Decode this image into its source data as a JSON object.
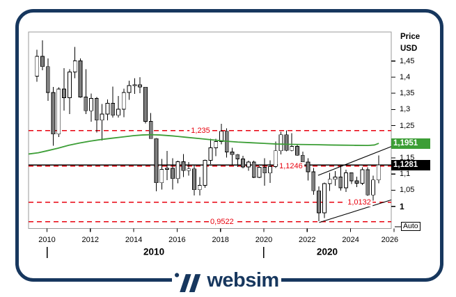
{
  "brand": "websim",
  "chart_data": {
    "type": "candlestick",
    "title": "",
    "period": "quarterly",
    "colors": {
      "frame": "#17375e",
      "up_candle": "#ffffff",
      "down_candle": "#808080",
      "wick": "#000000",
      "level_red": "#e8000d",
      "ma_green": "#3c9e36",
      "current_price_bg": "#000000",
      "plot_border": "#9a9a9a"
    },
    "y_axis": {
      "title1": "Price",
      "title2": "USD",
      "range": [
        0.9315,
        1.5398
      ],
      "ticks": [
        {
          "value": 1.45,
          "label": "1,45",
          "bold": false
        },
        {
          "value": 1.4,
          "label": "1,4",
          "bold": false
        },
        {
          "value": 1.35,
          "label": "1,35",
          "bold": false
        },
        {
          "value": 1.3,
          "label": "1,3",
          "bold": false
        },
        {
          "value": 1.25,
          "label": "1,25",
          "bold": false
        },
        {
          "value": 1.15,
          "label": "1,15",
          "bold": false
        },
        {
          "value": 1.1,
          "label": "1,1",
          "bold": false
        },
        {
          "value": 1.05,
          "label": "1,05",
          "bold": false
        },
        {
          "value": 1.0,
          "label": "1",
          "bold": true
        }
      ]
    },
    "x_axis": {
      "range": [
        2009.149,
        2025.875
      ],
      "ticks": [
        {
          "t": 2010,
          "label": "2010"
        },
        {
          "t": 2012,
          "label": "2012"
        },
        {
          "t": 2014,
          "label": "2014"
        },
        {
          "t": 2016,
          "label": "2016"
        },
        {
          "t": 2018,
          "label": "2018"
        },
        {
          "t": 2020,
          "label": "2020"
        },
        {
          "t": 2022,
          "label": "2022"
        },
        {
          "t": 2024,
          "label": "2024"
        },
        {
          "t": 2026,
          "label": "2026"
        }
      ],
      "decade_markers": [
        {
          "t": 2010.0
        },
        {
          "t": 2020.0
        }
      ],
      "decade_labels": [
        {
          "label": "2010",
          "t": 2014.93
        },
        {
          "label": "2020",
          "t": 2022.92
        }
      ]
    },
    "levels": [
      {
        "value": 1.235,
        "label": "1,235",
        "label_t": 2017.08
      },
      {
        "value": 1.1246,
        "label": "1,1246",
        "label_t": 2021.25
      },
      {
        "value": 1.0132,
        "label": "1,0132",
        "label_t": 2024.4
      },
      {
        "value": 0.9522,
        "label": "0,9522",
        "label_t": 2018.07
      }
    ],
    "current_price": {
      "value": 1.1281,
      "label": "1,1281"
    },
    "ma": {
      "last_value": 1.1951,
      "last_label": "1,1951",
      "points": [
        [
          2009.149,
          1.162
        ],
        [
          2009.6,
          1.166
        ],
        [
          2010.0,
          1.172
        ],
        [
          2010.5,
          1.18
        ],
        [
          2011.0,
          1.189
        ],
        [
          2011.5,
          1.196
        ],
        [
          2012.0,
          1.202
        ],
        [
          2012.5,
          1.207
        ],
        [
          2013.0,
          1.211
        ],
        [
          2013.5,
          1.215
        ],
        [
          2014.0,
          1.219
        ],
        [
          2014.4,
          1.221
        ],
        [
          2014.8,
          1.222
        ],
        [
          2015.2,
          1.221
        ],
        [
          2015.8,
          1.218
        ],
        [
          2016.4,
          1.214
        ],
        [
          2017.0,
          1.21
        ],
        [
          2017.6,
          1.206
        ],
        [
          2018.2,
          1.202
        ],
        [
          2018.8,
          1.199
        ],
        [
          2019.4,
          1.197
        ],
        [
          2020.0,
          1.195
        ],
        [
          2020.6,
          1.193
        ],
        [
          2021.2,
          1.192
        ],
        [
          2021.8,
          1.1915
        ],
        [
          2022.4,
          1.191
        ],
        [
          2023.0,
          1.19
        ],
        [
          2023.6,
          1.1895
        ],
        [
          2024.2,
          1.189
        ],
        [
          2024.8,
          1.1885
        ],
        [
          2025.1,
          1.19
        ],
        [
          2025.3,
          1.1951
        ]
      ]
    },
    "trendlines": [
      {
        "from": [
          2022.5,
          1.096
        ],
        "to": [
          2025.875,
          1.185
        ]
      },
      {
        "from": [
          2022.55,
          0.95
        ],
        "to": [
          2025.875,
          1.02
        ]
      }
    ],
    "candles": {
      "start_t": 2009.54,
      "step": 0.25,
      "ohlc": [
        [
          1.4033,
          1.4844,
          1.3861,
          1.4643
        ],
        [
          1.4643,
          1.5144,
          1.4218,
          1.4326
        ],
        [
          1.4326,
          1.4579,
          1.3267,
          1.3527
        ],
        [
          1.3527,
          1.3692,
          1.1876,
          1.2238
        ],
        [
          1.2238,
          1.3684,
          1.215,
          1.3634
        ],
        [
          1.3634,
          1.4282,
          1.2969,
          1.3362
        ],
        [
          1.3362,
          1.4249,
          1.286,
          1.4158
        ],
        [
          1.4158,
          1.494,
          1.397,
          1.4502
        ],
        [
          1.4502,
          1.4578,
          1.336,
          1.3387
        ],
        [
          1.3387,
          1.4247,
          1.2858,
          1.296
        ],
        [
          1.296,
          1.3487,
          1.2624,
          1.3343
        ],
        [
          1.3343,
          1.3384,
          1.2288,
          1.2667
        ],
        [
          1.2667,
          1.3172,
          1.2042,
          1.286
        ],
        [
          1.286,
          1.3308,
          1.2661,
          1.3194
        ],
        [
          1.3194,
          1.3711,
          1.2746,
          1.2819
        ],
        [
          1.2819,
          1.3416,
          1.2746,
          1.301
        ],
        [
          1.301,
          1.3645,
          1.2756,
          1.3527
        ],
        [
          1.3527,
          1.3893,
          1.3296,
          1.3743
        ],
        [
          1.3743,
          1.3967,
          1.3477,
          1.3769
        ],
        [
          1.3769,
          1.3993,
          1.3503,
          1.3692
        ],
        [
          1.3692,
          1.37,
          1.2571,
          1.2631
        ],
        [
          1.2631,
          1.2886,
          1.2097,
          1.2098
        ],
        [
          1.2098,
          1.2109,
          1.0462,
          1.0731
        ],
        [
          1.0731,
          1.1467,
          1.0519,
          1.1147
        ],
        [
          1.1147,
          1.1714,
          1.0809,
          1.1177
        ],
        [
          1.1177,
          1.1495,
          1.0524,
          1.0862
        ],
        [
          1.0862,
          1.1412,
          1.0711,
          1.138
        ],
        [
          1.138,
          1.1616,
          1.0913,
          1.1106
        ],
        [
          1.1106,
          1.1366,
          1.0952,
          1.1161
        ],
        [
          1.1161,
          1.13,
          1.034,
          1.0517
        ],
        [
          1.0517,
          1.0906,
          1.0341,
          1.0652
        ],
        [
          1.0652,
          1.1445,
          1.057,
          1.1426
        ],
        [
          1.1426,
          1.2092,
          1.1312,
          1.1814
        ],
        [
          1.1814,
          1.2093,
          1.1554,
          1.2005
        ],
        [
          1.2005,
          1.2555,
          1.1916,
          1.2324
        ],
        [
          1.2324,
          1.2414,
          1.1508,
          1.1684
        ],
        [
          1.1684,
          1.1815,
          1.1301,
          1.1604
        ],
        [
          1.1604,
          1.1623,
          1.1216,
          1.1467
        ],
        [
          1.1467,
          1.157,
          1.1176,
          1.1218
        ],
        [
          1.1218,
          1.1412,
          1.1107,
          1.1373
        ],
        [
          1.1373,
          1.1412,
          1.0879,
          1.0899
        ],
        [
          1.0899,
          1.1239,
          1.0879,
          1.1213
        ],
        [
          1.1213,
          1.1495,
          1.0636,
          1.1031
        ],
        [
          1.1031,
          1.1422,
          1.0727,
          1.1234
        ],
        [
          1.1234,
          1.2011,
          1.1185,
          1.1722
        ],
        [
          1.1722,
          1.231,
          1.1612,
          1.2216
        ],
        [
          1.2216,
          1.2349,
          1.1704,
          1.173
        ],
        [
          1.173,
          1.2266,
          1.1704,
          1.1858
        ],
        [
          1.1858,
          1.1909,
          1.1563,
          1.158
        ],
        [
          1.158,
          1.1692,
          1.1186,
          1.137
        ],
        [
          1.137,
          1.1495,
          1.0806,
          1.1067
        ],
        [
          1.1067,
          1.1185,
          1.0359,
          1.0484
        ],
        [
          1.0484,
          1.0615,
          0.9536,
          0.9802
        ],
        [
          0.9802,
          1.0735,
          0.9633,
          1.0705
        ],
        [
          1.0705,
          1.1033,
          1.0482,
          1.0839
        ],
        [
          1.0839,
          1.1095,
          1.0635,
          1.0909
        ],
        [
          1.0909,
          1.1275,
          1.0488,
          1.0573
        ],
        [
          1.0573,
          1.1139,
          1.0448,
          1.1038
        ],
        [
          1.1038,
          1.1046,
          1.0695,
          1.079
        ],
        [
          1.079,
          1.0916,
          1.0601,
          1.0713
        ],
        [
          1.0713,
          1.1214,
          1.0666,
          1.1135
        ],
        [
          1.1135,
          1.1214,
          1.0332,
          1.0354
        ],
        [
          1.0354,
          1.0954,
          1.0178,
          1.0816
        ],
        [
          1.0816,
          1.1573,
          1.0716,
          1.1281
        ]
      ]
    },
    "auto_button": "Auto"
  }
}
